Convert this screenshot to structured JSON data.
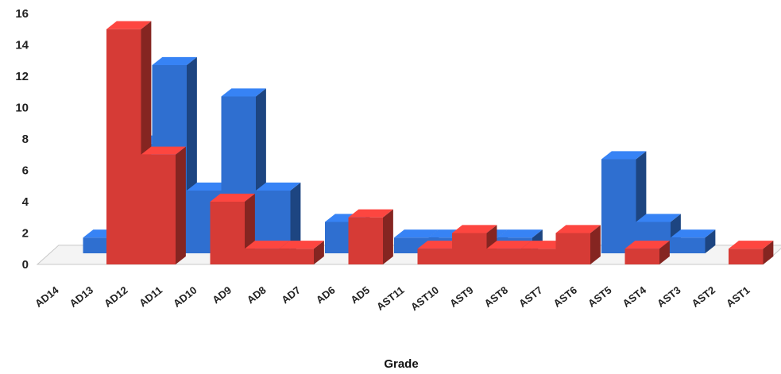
{
  "chart_data": {
    "type": "bar",
    "style": "3d-stepped-bars",
    "xlabel": "Grade",
    "ylabel": "",
    "ylim": [
      0,
      16
    ],
    "yticks": [
      0,
      2,
      4,
      6,
      8,
      10,
      12,
      14,
      16
    ],
    "grid": false,
    "legend": "none",
    "categories": [
      "AD14",
      "AD13",
      "AD12",
      "AD11",
      "AD10",
      "AD9",
      "AD8",
      "AD7",
      "AD6",
      "AD5",
      "AST11",
      "AST10",
      "AST9",
      "AST8",
      "AST7",
      "AST6",
      "AST5",
      "AST4",
      "AST3",
      "AST2",
      "AST1"
    ],
    "series": [
      {
        "color": "#2f6fd0",
        "values": [
          0,
          1,
          7,
          12,
          4,
          10,
          4,
          0,
          2,
          0,
          1,
          1,
          1,
          1,
          0,
          0,
          6,
          2,
          1,
          0,
          0
        ]
      },
      {
        "color": "#d63b36",
        "values": [
          0,
          0,
          15,
          7,
          0,
          4,
          1,
          1,
          0,
          3,
          0,
          1,
          2,
          1,
          1,
          2,
          0,
          1,
          0,
          0,
          1
        ]
      }
    ]
  }
}
